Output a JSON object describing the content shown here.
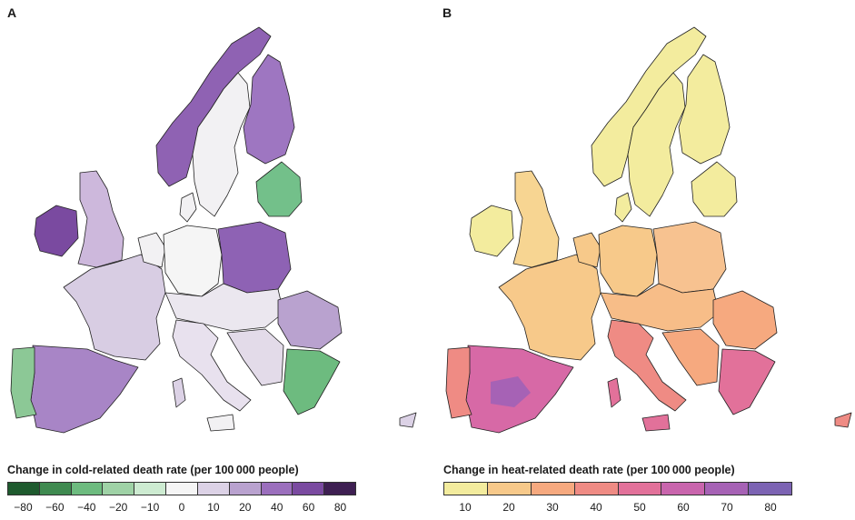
{
  "panels": [
    {
      "letter": "A",
      "legend_title": "Change in cold-related death rate (per 100 000 people)",
      "ticks": [
        "−80",
        "−60",
        "−40",
        "−20",
        "−10",
        "0",
        "10",
        "20",
        "40",
        "60",
        "80"
      ],
      "colors": [
        "#1e5a2e",
        "#3f8a50",
        "#6dbb7f",
        "#9fd2a6",
        "#cdebd1",
        "#f5f5f5",
        "#dcd2e6",
        "#b9a2cf",
        "#9b6fbd",
        "#7a4aa0",
        "#3e1f52"
      ]
    },
    {
      "letter": "B",
      "legend_title": "Change in heat-related death rate (per 100 000 people)",
      "ticks": [
        "10",
        "20",
        "30",
        "40",
        "50",
        "60",
        "70",
        "80"
      ],
      "colors": [
        "#f3ec9e",
        "#f7c98a",
        "#f6a97f",
        "#ef8b84",
        "#e2719a",
        "#c965ad",
        "#a662b5",
        "#7c63b3"
      ]
    }
  ]
}
